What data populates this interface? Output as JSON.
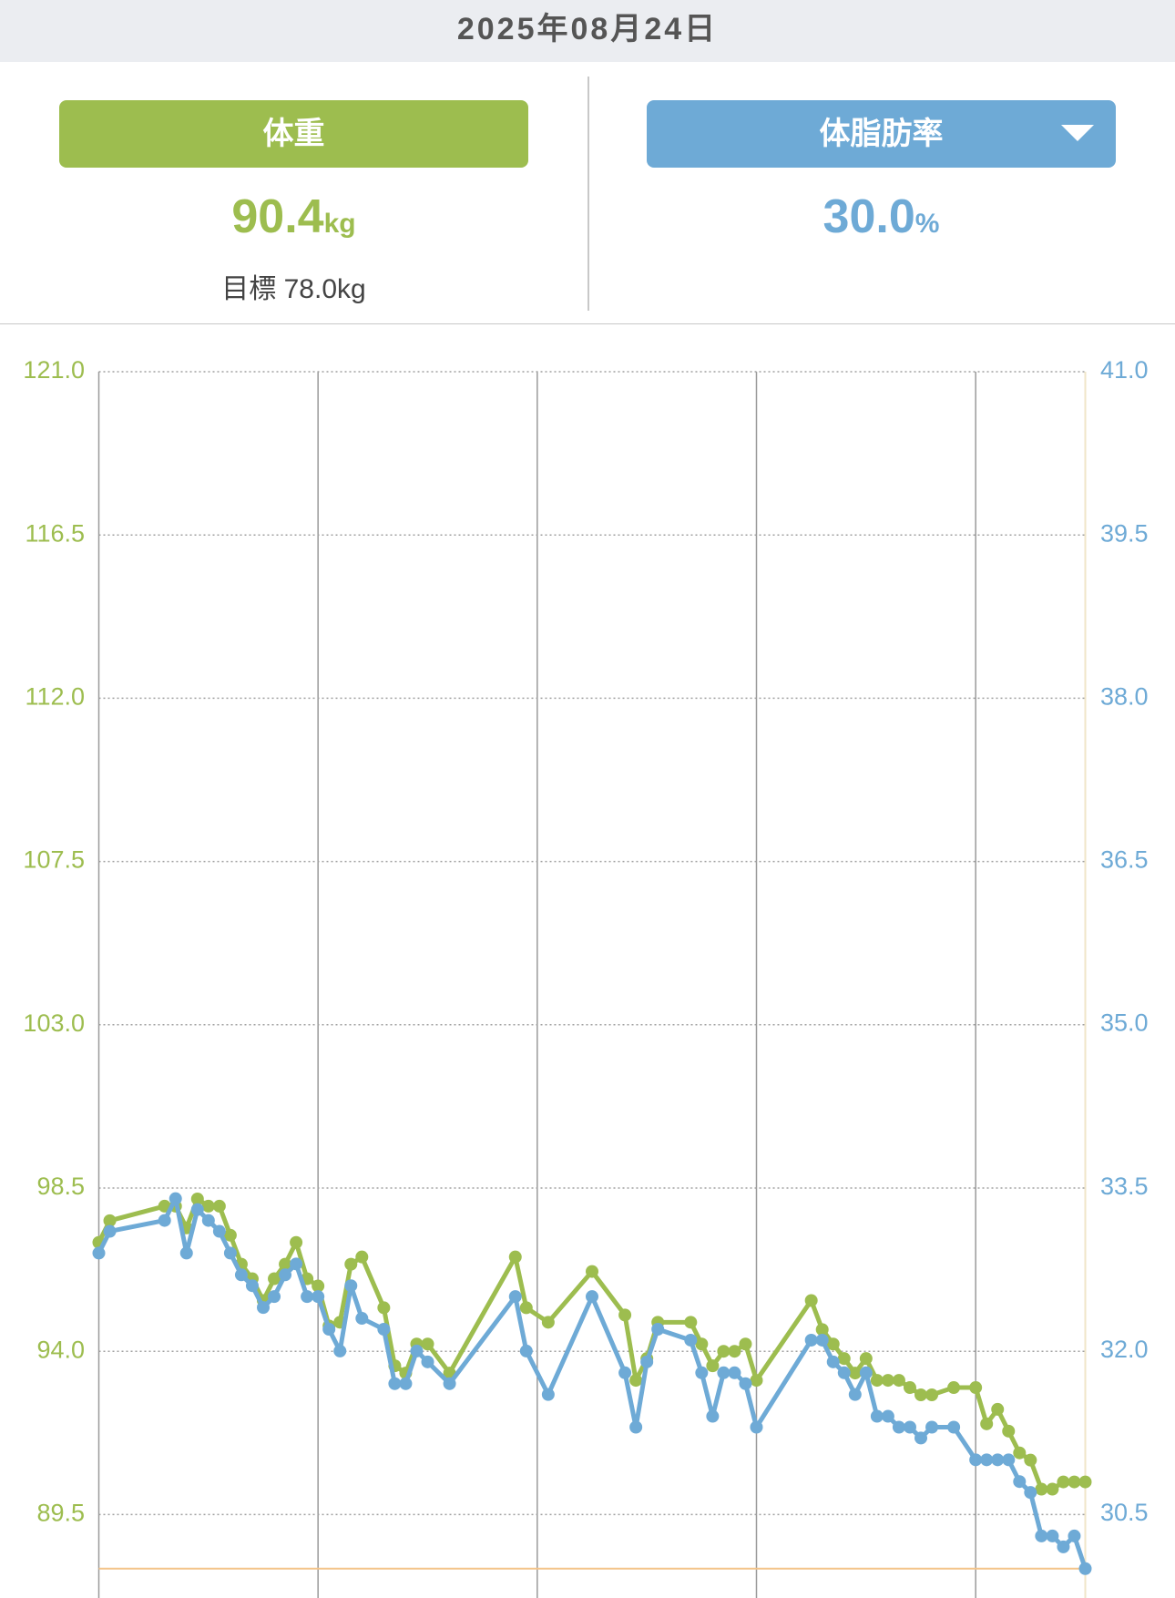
{
  "header": {
    "date": "2025年08月24日"
  },
  "panels": [
    {
      "label": "体重",
      "value": "90.4",
      "unit": "kg",
      "goal": "目標 78.0kg"
    },
    {
      "label": "体脂肪率",
      "value": "30.0",
      "unit": "%"
    }
  ],
  "chart_data": {
    "type": "line",
    "x": [
      0,
      1,
      6,
      7,
      8,
      9,
      10,
      11,
      12,
      13,
      14,
      15,
      16,
      17,
      18,
      19,
      20,
      21,
      22,
      23,
      24,
      26,
      27,
      28,
      29,
      30,
      32,
      38,
      39,
      41,
      45,
      48,
      49,
      50,
      51,
      54,
      55,
      56,
      57,
      58,
      59,
      60,
      65,
      66,
      67,
      68,
      69,
      70,
      71,
      72,
      73,
      74,
      75,
      76,
      78,
      80,
      81,
      82,
      83,
      84,
      85,
      86,
      87,
      88,
      89,
      90
    ],
    "xlim": [
      0,
      90
    ],
    "xticks": [
      0,
      20,
      40,
      60,
      80
    ],
    "ylim": [
      87.2,
      121
    ],
    "yticks": [
      {
        "value": 121,
        "label": "121.0"
      },
      116.5,
      {
        "value": 112,
        "label": "112.0"
      },
      107.5,
      {
        "value": 103,
        "label": "103.0"
      },
      98.5,
      {
        "value": 94,
        "label": "94.0"
      },
      89.5
    ],
    "y2lim": [
      29.73,
      41
    ],
    "y2ticks": [
      {
        "value": 41,
        "label": "41.0"
      },
      39.5,
      {
        "value": 38,
        "label": "38.0"
      },
      36.5,
      {
        "value": 35,
        "label": "35.0"
      },
      33.5,
      {
        "value": 32,
        "label": "32.0"
      },
      30.5
    ],
    "grid": true,
    "series": [
      {
        "color": "#9dbd4f",
        "axis": "y",
        "values": [
          97.0,
          97.6,
          98.0,
          98.0,
          97.4,
          98.2,
          98.0,
          98.0,
          97.2,
          96.4,
          96.0,
          95.4,
          96.0,
          96.4,
          97.0,
          96.0,
          95.8,
          94.7,
          94.8,
          96.4,
          96.6,
          95.2,
          93.6,
          93.4,
          94.2,
          94.2,
          93.4,
          96.6,
          95.2,
          94.8,
          96.2,
          95.0,
          93.2,
          93.8,
          94.8,
          94.8,
          94.2,
          93.6,
          94.0,
          94.0,
          94.2,
          93.2,
          95.4,
          94.6,
          94.2,
          93.8,
          93.4,
          93.8,
          93.2,
          93.2,
          93.2,
          93.0,
          92.8,
          92.8,
          93.0,
          93.0,
          92.0,
          92.4,
          91.8,
          91.2,
          91.0,
          90.2,
          90.2,
          90.4,
          90.4,
          90.4
        ]
      },
      {
        "color": "#6eaad6",
        "axis": "y2",
        "values": [
          32.9,
          33.1,
          33.2,
          33.4,
          32.9,
          33.3,
          33.2,
          33.1,
          32.9,
          32.7,
          32.6,
          32.4,
          32.5,
          32.7,
          32.8,
          32.5,
          32.5,
          32.2,
          32.0,
          32.6,
          32.3,
          32.2,
          31.7,
          31.7,
          32.0,
          31.9,
          31.7,
          32.5,
          32.0,
          31.6,
          32.5,
          31.8,
          31.3,
          31.9,
          32.2,
          32.1,
          31.8,
          31.4,
          31.8,
          31.8,
          31.7,
          31.3,
          32.1,
          32.1,
          31.9,
          31.8,
          31.6,
          31.8,
          31.4,
          31.4,
          31.3,
          31.3,
          31.2,
          31.3,
          31.3,
          31.0,
          31.0,
          31.0,
          31.0,
          30.8,
          30.7,
          30.3,
          30.3,
          30.2,
          30.3,
          30.0
        ]
      }
    ]
  }
}
